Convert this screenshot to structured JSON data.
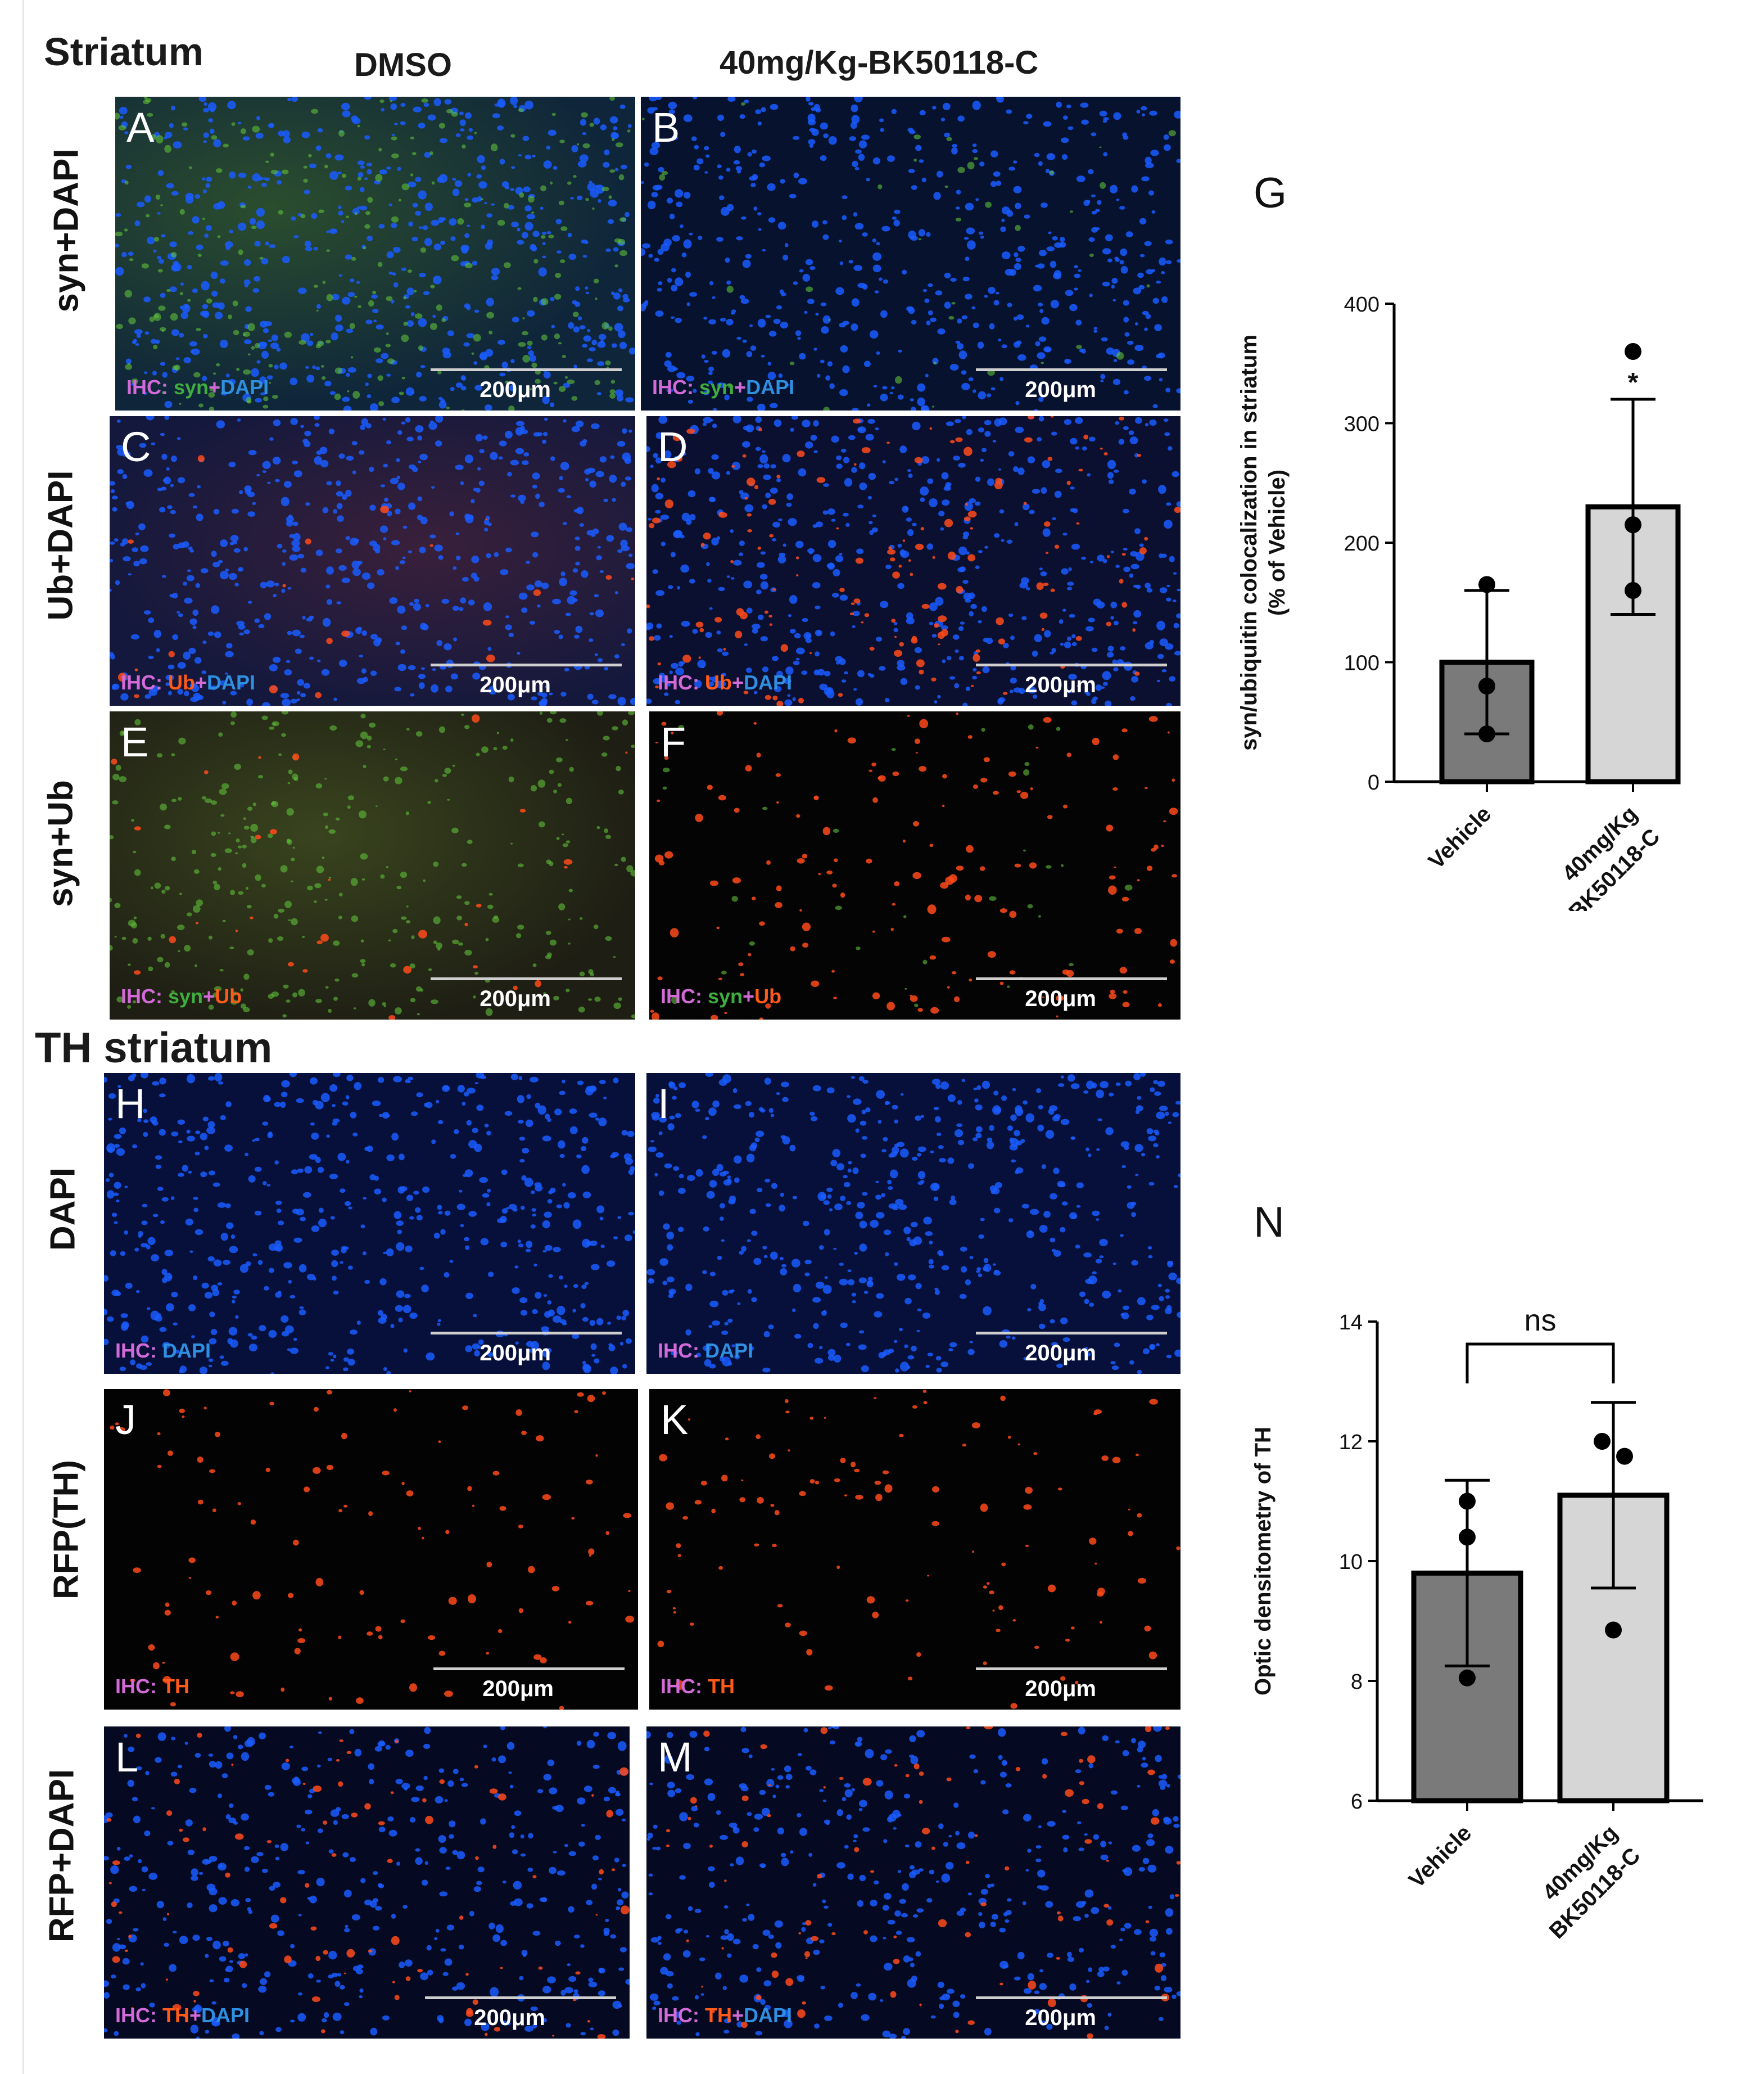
{
  "headers": {
    "striatum": "Striatum",
    "dmso": "DMSO",
    "treatment": "40mg/Kg-BK50118-C",
    "th_striatum": "TH striatum"
  },
  "row_labels": {
    "syn_dapi": "syn+DAPI",
    "ub_dapi": "Ub+DAPI",
    "syn_ub": "syn+Ub",
    "dapi": "DAPI",
    "rfp_th": "RFP(TH)",
    "rfp_dapi": "RFP+DAPI"
  },
  "scale_text": "200μm",
  "ihc_prefix": "IHC:",
  "panels": [
    {
      "letter": "A",
      "ihc": [
        [
          "syn",
          "g"
        ],
        [
          "+",
          "w"
        ],
        [
          "DAPI",
          "b"
        ]
      ],
      "tint": "syn_dapi_dmso"
    },
    {
      "letter": "B",
      "ihc": [
        [
          "syn",
          "g"
        ],
        [
          "+",
          "w"
        ],
        [
          "DAPI",
          "b"
        ]
      ],
      "tint": "syn_dapi_bk"
    },
    {
      "letter": "C",
      "ihc": [
        [
          "Ub",
          "r"
        ],
        [
          "+",
          "w"
        ],
        [
          "DAPI",
          "b"
        ]
      ],
      "tint": "ub_dapi_dmso"
    },
    {
      "letter": "D",
      "ihc": [
        [
          "Ub",
          "r"
        ],
        [
          "+",
          "w"
        ],
        [
          "DAPI",
          "b"
        ]
      ],
      "tint": "ub_dapi_bk"
    },
    {
      "letter": "E",
      "ihc": [
        [
          "syn",
          "g"
        ],
        [
          "+",
          "w"
        ],
        [
          "Ub",
          "r"
        ]
      ],
      "tint": "syn_ub_dmso"
    },
    {
      "letter": "F",
      "ihc": [
        [
          "syn",
          "g"
        ],
        [
          "+",
          "w"
        ],
        [
          "Ub",
          "r"
        ]
      ],
      "tint": "syn_ub_bk"
    },
    {
      "letter": "H",
      "ihc": [
        [
          "DAPI",
          "b"
        ]
      ],
      "tint": "dapi"
    },
    {
      "letter": "I",
      "ihc": [
        [
          "DAPI",
          "b"
        ]
      ],
      "tint": "dapi"
    },
    {
      "letter": "J",
      "ihc": [
        [
          "TH",
          "r"
        ]
      ],
      "tint": "th"
    },
    {
      "letter": "K",
      "ihc": [
        [
          "TH",
          "r"
        ]
      ],
      "tint": "th"
    },
    {
      "letter": "L",
      "ihc": [
        [
          "TH",
          "r"
        ],
        [
          "+",
          "w"
        ],
        [
          "DAPI",
          "b"
        ]
      ],
      "tint": "th_dapi"
    },
    {
      "letter": "M",
      "ihc": [
        [
          "TH",
          "r"
        ],
        [
          "+",
          "w"
        ],
        [
          "DAPI",
          "b"
        ]
      ],
      "tint": "th_dapi"
    }
  ],
  "colors": {
    "dapi_blue": "#1a5cff",
    "syn_green": "#5fbf3a",
    "ub_red": "#ff4a1a",
    "bar_vehicle": "#7a7a7a",
    "bar_treatment": "#d6d6d6"
  },
  "chart_data": [
    {
      "panel_letter": "G",
      "type": "bar",
      "categories": [
        "Vehicle",
        "40mg/Kg BK50118-C"
      ],
      "category_lines": [
        [
          "Vehicle"
        ],
        [
          "40mg/Kg",
          "BK50118-C"
        ]
      ],
      "values": [
        100,
        230
      ],
      "error": [
        60,
        90
      ],
      "points": [
        [
          165,
          80,
          40
        ],
        [
          360,
          215,
          160
        ]
      ],
      "ylabel_lines": [
        "syn/ubiquitin colocalization in striatum",
        "(% of Vehicle)"
      ],
      "ylim": [
        0,
        400
      ],
      "yticks": [
        0,
        100,
        200,
        300,
        400
      ],
      "annotation": "*"
    },
    {
      "panel_letter": "N",
      "type": "bar",
      "categories": [
        "Vehicle",
        "40mg/Kg-BK50118-C"
      ],
      "category_lines": [
        [
          "Vehicle"
        ],
        [
          "40mg/Kg",
          "BK50118-C"
        ]
      ],
      "values": [
        9.8,
        11.1
      ],
      "error": [
        1.55,
        1.55
      ],
      "points": [
        [
          11.0,
          10.4,
          8.05
        ],
        [
          12.0,
          11.75,
          8.85
        ]
      ],
      "ylabel_lines": [
        "Optic densitometry of TH"
      ],
      "ylim": [
        6,
        14
      ],
      "yticks": [
        6,
        8,
        10,
        12,
        14
      ],
      "annotation": "ns"
    }
  ]
}
